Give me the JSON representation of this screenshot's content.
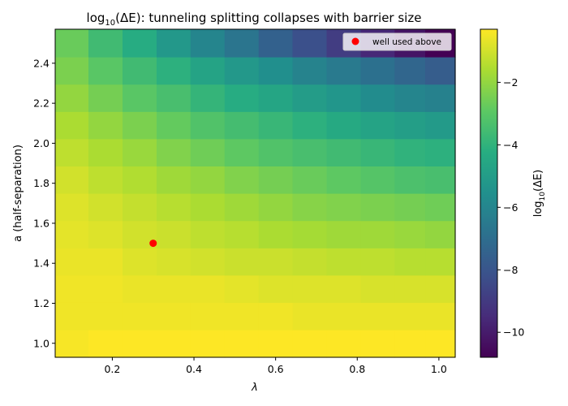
{
  "chart_data": {
    "type": "heatmap",
    "title": {
      "prefix": "log",
      "sub": "10",
      "suffix": "(ΔE): tunneling splitting collapses with barrier size"
    },
    "xlabel": "λ",
    "ylabel": "a (half-separation)",
    "colorbar_label": {
      "prefix": "log",
      "sub": "10",
      "suffix": "(ΔE)"
    },
    "colormap": "viridis",
    "x_centers": [
      0.1,
      0.183,
      0.267,
      0.35,
      0.433,
      0.517,
      0.6,
      0.683,
      0.767,
      0.85,
      0.933,
      1.0
    ],
    "y_centers": [
      1.0,
      1.136,
      1.273,
      1.409,
      1.545,
      1.682,
      1.818,
      1.955,
      2.091,
      2.227,
      2.364,
      2.5
    ],
    "xlim": [
      0.06,
      1.04
    ],
    "ylim": [
      0.93,
      2.57
    ],
    "xticks": [
      0.2,
      0.4,
      0.6,
      0.8,
      1.0
    ],
    "xtick_labels": [
      "0.2",
      "0.4",
      "0.6",
      "0.8",
      "1.0"
    ],
    "yticks": [
      1.0,
      1.2,
      1.4,
      1.6,
      1.8,
      2.0,
      2.2,
      2.4
    ],
    "ytick_labels": [
      "1.0",
      "1.2",
      "1.4",
      "1.6",
      "1.8",
      "2.0",
      "2.2",
      "2.4"
    ],
    "clim": [
      -10.8,
      -0.3
    ],
    "cbar_ticks": [
      -2,
      -4,
      -6,
      -8,
      -10
    ],
    "cbar_tick_labels": [
      "−2",
      "−4",
      "−6",
      "−8",
      "−10"
    ],
    "values": [
      [
        -0.4,
        -0.3,
        -0.3,
        -0.3,
        -0.3,
        -0.3,
        -0.3,
        -0.3,
        -0.3,
        -0.3,
        -0.3,
        -0.3
      ],
      [
        -0.5,
        -0.5,
        -0.5,
        -0.5,
        -0.5,
        -0.5,
        -0.5,
        -0.6,
        -0.6,
        -0.6,
        -0.6,
        -0.6
      ],
      [
        -0.5,
        -0.5,
        -0.6,
        -0.6,
        -0.6,
        -0.7,
        -0.8,
        -0.8,
        -0.8,
        -0.9,
        -0.9,
        -0.9
      ],
      [
        -0.6,
        -0.6,
        -0.8,
        -0.9,
        -1.0,
        -1.1,
        -1.1,
        -1.2,
        -1.3,
        -1.3,
        -1.4,
        -1.4
      ],
      [
        -0.7,
        -0.8,
        -1.0,
        -1.1,
        -1.3,
        -1.4,
        -1.6,
        -1.7,
        -1.8,
        -1.8,
        -1.9,
        -2.0
      ],
      [
        -0.8,
        -1.0,
        -1.2,
        -1.4,
        -1.6,
        -1.8,
        -2.0,
        -2.2,
        -2.3,
        -2.4,
        -2.5,
        -2.6
      ],
      [
        -1.0,
        -1.3,
        -1.5,
        -1.8,
        -2.0,
        -2.3,
        -2.5,
        -2.7,
        -2.9,
        -3.1,
        -3.3,
        -3.4
      ],
      [
        -1.3,
        -1.6,
        -1.9,
        -2.3,
        -2.6,
        -2.9,
        -3.2,
        -3.4,
        -3.6,
        -3.8,
        -4.0,
        -4.1
      ],
      [
        -1.6,
        -2.0,
        -2.4,
        -2.8,
        -3.2,
        -3.5,
        -3.8,
        -4.1,
        -4.4,
        -4.7,
        -4.9,
        -5.1
      ],
      [
        -2.0,
        -2.5,
        -3.0,
        -3.4,
        -3.9,
        -4.3,
        -4.6,
        -5.0,
        -5.3,
        -5.7,
        -6.0,
        -6.2
      ],
      [
        -2.4,
        -3.0,
        -3.6,
        -4.1,
        -4.7,
        -5.2,
        -5.6,
        -6.1,
        -6.5,
        -6.9,
        -7.3,
        -7.7
      ],
      [
        -2.7,
        -3.6,
        -4.3,
        -5.2,
        -6.0,
        -6.7,
        -7.5,
        -8.2,
        -8.9,
        -9.6,
        -10.2,
        -10.8
      ]
    ],
    "marker": {
      "x": 0.3,
      "y": 1.5,
      "color": "#ff0000",
      "label": "well used above"
    },
    "legend_position": "upper right"
  }
}
